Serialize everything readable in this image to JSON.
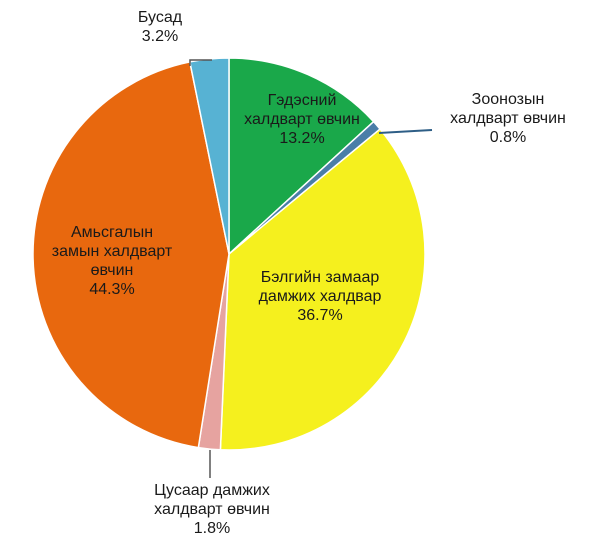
{
  "chart_data": {
    "type": "pie",
    "slices": [
      {
        "label_lines": [
          "Гэдэсний",
          "халдварт өвчин"
        ],
        "value": 13.2,
        "value_text": "13.2%",
        "color": "#1aa84a"
      },
      {
        "label_lines": [
          "Зоонозын",
          "халдварт өвчин"
        ],
        "value": 0.8,
        "value_text": "0.8%",
        "color": "#4a7ea8"
      },
      {
        "label_lines": [
          "Бэлгийн замаар",
          "дамжих халдвар"
        ],
        "value": 36.7,
        "value_text": "36.7%",
        "color": "#f5f01e"
      },
      {
        "label_lines": [
          "Цусаар дамжих",
          "халдварт өвчин"
        ],
        "value": 1.8,
        "value_text": "1.8%",
        "color": "#e6a3a0"
      },
      {
        "label_lines": [
          "Амьсгалын",
          "замын халдварт",
          "өвчин"
        ],
        "value": 44.3,
        "value_text": "44.3%",
        "color": "#e8680e"
      },
      {
        "label_lines": [
          "Бусад"
        ],
        "value": 3.2,
        "value_text": "3.2%",
        "color": "#57b2d3"
      }
    ]
  }
}
